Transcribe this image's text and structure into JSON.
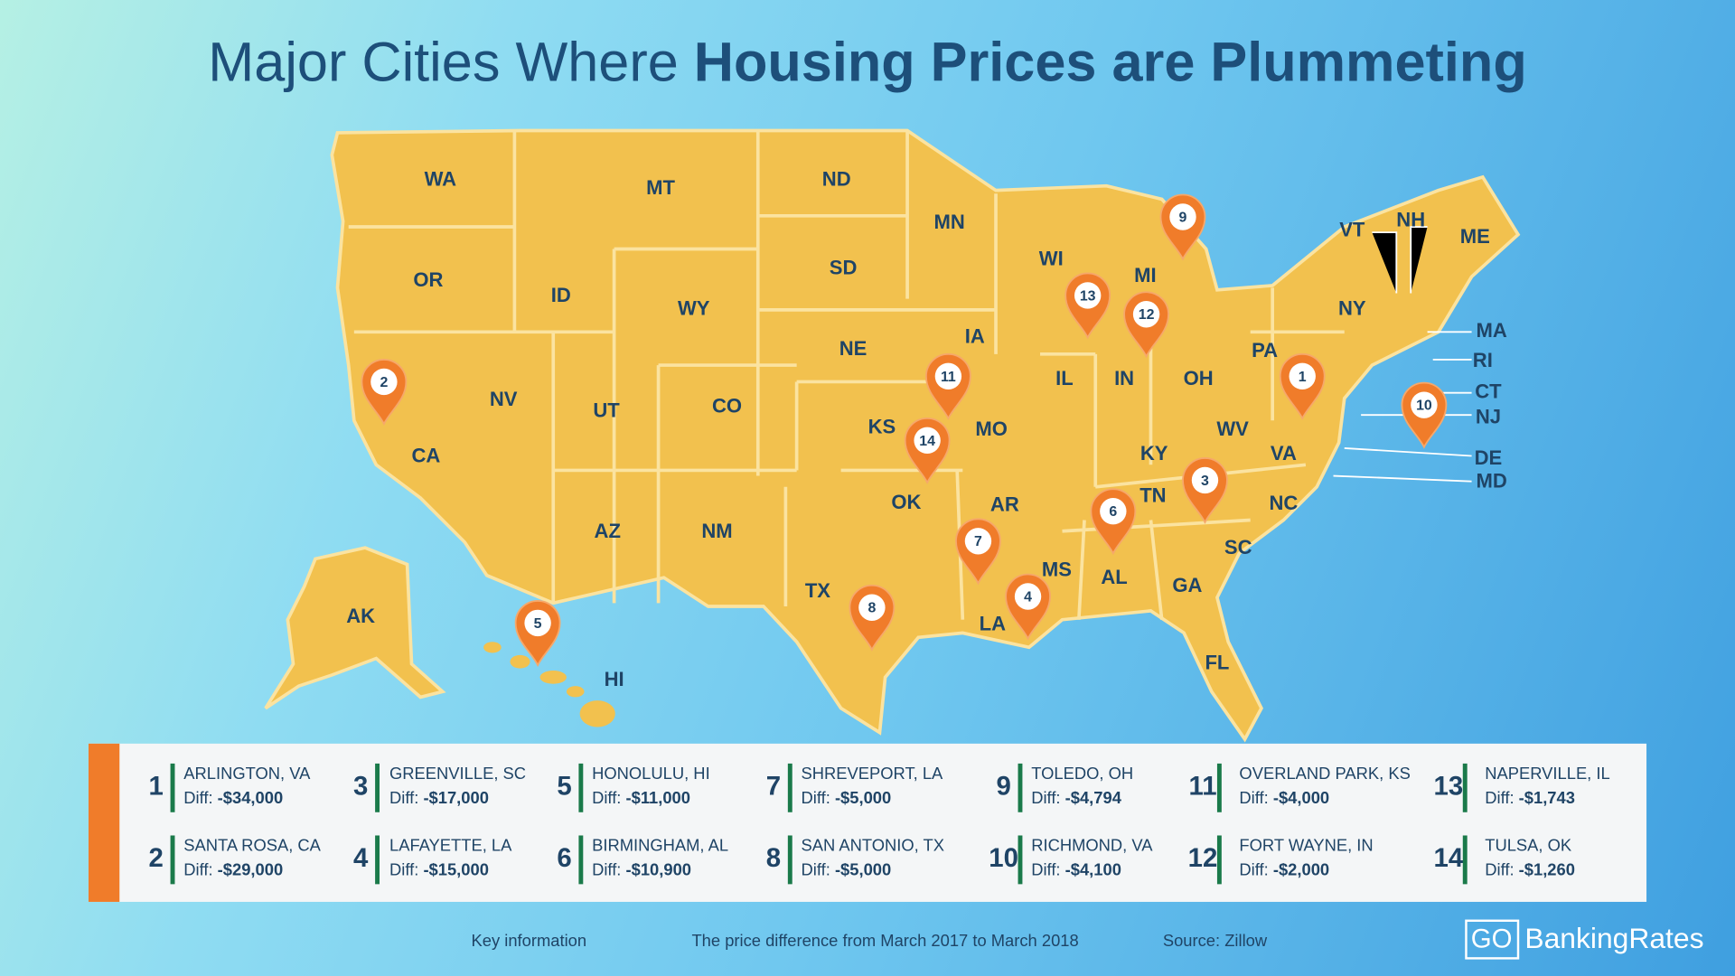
{
  "title": {
    "light": "Major Cities Where",
    "bold": "Housing Prices are Plummeting"
  },
  "states": [
    "WA",
    "MT",
    "ND",
    "MN",
    "OR",
    "ID",
    "WY",
    "SD",
    "WI",
    "MI",
    "NY",
    "VT",
    "NH",
    "ME",
    "MA",
    "RI",
    "CT",
    "NJ",
    "DE",
    "MD",
    "NV",
    "UT",
    "CO",
    "NE",
    "IA",
    "IL",
    "IN",
    "OH",
    "PA",
    "CA",
    "KS",
    "MO",
    "KY",
    "WV",
    "VA",
    "TN",
    "NC",
    "OK",
    "AR",
    "AZ",
    "NM",
    "MS",
    "AL",
    "GA",
    "SC",
    "TX",
    "LA",
    "FL",
    "AK",
    "HI"
  ],
  "pins": [
    "1",
    "2",
    "3",
    "4",
    "5",
    "6",
    "7",
    "8",
    "9",
    "10",
    "11",
    "12",
    "13",
    "14"
  ],
  "legend": {
    "diff_prefix": "Diff:",
    "items": [
      {
        "rank": "1",
        "city": "ARLINGTON, VA",
        "diff": "-$34,000"
      },
      {
        "rank": "2",
        "city": "SANTA ROSA, CA",
        "diff": "-$29,000"
      },
      {
        "rank": "3",
        "city": "GREENVILLE, SC",
        "diff": "-$17,000"
      },
      {
        "rank": "4",
        "city": "LAFAYETTE, LA",
        "diff": "-$15,000"
      },
      {
        "rank": "5",
        "city": "HONOLULU, HI",
        "diff": "-$11,000"
      },
      {
        "rank": "6",
        "city": "BIRMINGHAM, AL",
        "diff": "-$10,900"
      },
      {
        "rank": "7",
        "city": "SHREVEPORT, LA",
        "diff": "-$5,000"
      },
      {
        "rank": "8",
        "city": "SAN ANTONIO, TX",
        "diff": "-$5,000"
      },
      {
        "rank": "9",
        "city": "TOLEDO, OH",
        "diff": "-$4,794"
      },
      {
        "rank": "10",
        "city": "RICHMOND, VA",
        "diff": "-$4,100"
      },
      {
        "rank": "11",
        "city": "OVERLAND PARK, KS",
        "diff": "-$4,000"
      },
      {
        "rank": "12",
        "city": "FORT WAYNE, IN",
        "diff": "-$2,000"
      },
      {
        "rank": "13",
        "city": "NAPERVILLE, IL",
        "diff": "-$1,743"
      },
      {
        "rank": "14",
        "city": "TULSA, OK",
        "diff": "-$1,260"
      }
    ]
  },
  "footer": {
    "key": "Key information",
    "note": "The price difference from March 2017 to March 2018",
    "source": "Source: Zillow",
    "logo_go": "GO",
    "logo_name": "BankingRates"
  }
}
